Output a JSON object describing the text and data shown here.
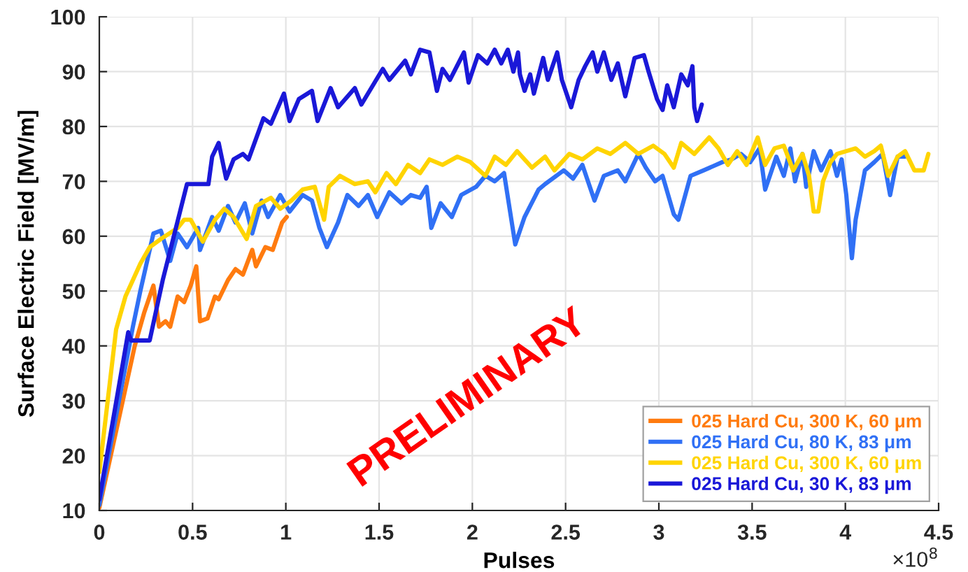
{
  "chart_data": {
    "type": "line",
    "xlabel": "Pulses",
    "ylabel": "Surface Electric Field [MV/m]",
    "xlim": [
      0,
      4.5
    ],
    "xticks": [
      0,
      0.5,
      1,
      1.5,
      2,
      2.5,
      3,
      3.5,
      4,
      4.5
    ],
    "ylim": [
      10,
      100
    ],
    "yticks": [
      10,
      20,
      30,
      40,
      50,
      60,
      70,
      80,
      90,
      100
    ],
    "grid": true,
    "legend": "bottom right",
    "line_style": "solid",
    "marker": "none",
    "annotations": [
      "×10$^{8}$",
      "PRELIMINARY"
    ],
    "series": [
      {
        "name": "025 Hard Cu, 300 K, 60 μm",
        "color": "#ff7b0f",
        "x": [
          0,
          0.1,
          0.19,
          0.24,
          0.27,
          0.29,
          0.32,
          0.355,
          0.38,
          0.42,
          0.455,
          0.49,
          0.52,
          0.54,
          0.58,
          0.62,
          0.64,
          0.69,
          0.73,
          0.77,
          0.82,
          0.84,
          0.89,
          0.93,
          0.98,
          1.005
        ],
        "values": [
          10.5,
          26,
          40,
          46,
          49,
          51,
          43.5,
          44.5,
          43.5,
          49,
          48,
          51,
          54.5,
          44.5,
          45,
          49,
          48.5,
          52,
          54,
          53,
          57.5,
          54.5,
          58,
          57.5,
          62.5,
          63.5
        ]
      },
      {
        "name": "025 Hard Cu, 80 K, 83 μm",
        "color": "#3070f5",
        "x": [
          0,
          0.18,
          0.22,
          0.29,
          0.33,
          0.38,
          0.42,
          0.47,
          0.53,
          0.54,
          0.605,
          0.64,
          0.69,
          0.73,
          0.78,
          0.82,
          0.87,
          0.905,
          0.97,
          1.02,
          1.09,
          1.14,
          1.18,
          1.22,
          1.28,
          1.33,
          1.39,
          1.44,
          1.49,
          1.555,
          1.62,
          1.67,
          1.72,
          1.755,
          1.78,
          1.83,
          1.89,
          1.94,
          2.02,
          2.07,
          2.12,
          2.17,
          2.23,
          2.28,
          2.355,
          2.39,
          2.49,
          2.54,
          2.59,
          2.655,
          2.705,
          2.78,
          2.82,
          2.89,
          2.93,
          2.98,
          3.02,
          3.08,
          3.105,
          3.17,
          3.24,
          3.34,
          3.39,
          3.44,
          3.49,
          3.54,
          3.57,
          3.63,
          3.67,
          3.705,
          3.73,
          3.77,
          3.79,
          3.83,
          3.87,
          3.92,
          3.955,
          3.98,
          4.005,
          4.035,
          4.055,
          4.105,
          4.155,
          4.2,
          4.24,
          4.28,
          4.32
        ],
        "values": [
          11,
          43.5,
          50,
          60.5,
          61,
          55.5,
          60.5,
          58,
          61.5,
          57.5,
          63.5,
          61,
          65.5,
          62.5,
          66,
          60.5,
          66.5,
          63.5,
          67.5,
          64.5,
          67.5,
          66.5,
          61.5,
          58,
          62.5,
          67.5,
          65.5,
          67.5,
          63.5,
          68,
          66,
          67.5,
          67,
          69,
          61.5,
          66,
          63.5,
          67.5,
          69,
          71,
          70,
          71.5,
          58.5,
          63.5,
          68.5,
          69.5,
          72,
          70.5,
          73,
          66.5,
          71,
          72,
          70,
          75,
          72.5,
          70,
          71,
          64,
          63,
          71,
          72,
          73.5,
          74,
          75,
          73.5,
          76,
          68.5,
          74.5,
          71,
          76,
          70,
          75,
          69,
          75.5,
          72,
          75.5,
          71,
          74,
          67.5,
          56,
          63,
          72,
          73.5,
          75,
          67.5,
          74.5,
          74.5
        ]
      },
      {
        "name": "025 Hard Cu, 300 K, 60 μm",
        "color": "#ffd400",
        "x": [
          0,
          0.09,
          0.14,
          0.22,
          0.27,
          0.33,
          0.42,
          0.455,
          0.49,
          0.555,
          0.62,
          0.67,
          0.72,
          0.79,
          0.84,
          0.92,
          0.97,
          1.03,
          1.09,
          1.155,
          1.205,
          1.23,
          1.29,
          1.37,
          1.44,
          1.48,
          1.54,
          1.59,
          1.655,
          1.72,
          1.77,
          1.84,
          1.92,
          1.99,
          2.07,
          2.12,
          2.18,
          2.24,
          2.32,
          2.39,
          2.44,
          2.52,
          2.59,
          2.67,
          2.74,
          2.82,
          2.89,
          2.97,
          3.03,
          3.08,
          3.12,
          3.19,
          3.27,
          3.32,
          3.37,
          3.42,
          3.47,
          3.53,
          3.57,
          3.62,
          3.67,
          3.72,
          3.77,
          3.805,
          3.83,
          3.855,
          3.88,
          3.92,
          3.955,
          4.005,
          4.055,
          4.105,
          4.155,
          4.19,
          4.23,
          4.28,
          4.32,
          4.37,
          4.42,
          4.445
        ],
        "values": [
          17,
          43,
          49,
          55,
          58,
          59.5,
          61.5,
          63,
          63,
          59,
          63,
          65,
          63.5,
          59.5,
          65.5,
          67,
          65,
          66.5,
          68.5,
          69,
          63,
          69,
          71,
          69.5,
          70,
          68,
          71.5,
          69.5,
          73,
          71.5,
          74,
          73,
          74.5,
          73.5,
          71,
          74.5,
          73,
          75.5,
          72.5,
          74.5,
          72,
          75,
          74,
          76,
          75,
          77,
          75,
          76.5,
          75,
          72.5,
          77,
          75,
          78,
          76,
          73,
          75.5,
          73,
          78,
          73,
          76,
          76.5,
          72,
          75,
          71,
          64.5,
          64.5,
          70,
          73.5,
          75,
          75.5,
          76,
          74.5,
          75.5,
          76.5,
          71,
          74.5,
          75.5,
          72,
          72,
          75
        ]
      },
      {
        "name": "025 Hard Cu, 30 K, 83 μm",
        "color": "#1a18d8",
        "x": [
          0,
          0.155,
          0.17,
          0.27,
          0.34,
          0.47,
          0.585,
          0.605,
          0.64,
          0.68,
          0.72,
          0.77,
          0.8,
          0.88,
          0.92,
          0.99,
          1.02,
          1.07,
          1.14,
          1.17,
          1.24,
          1.28,
          1.37,
          1.405,
          1.52,
          1.555,
          1.64,
          1.67,
          1.72,
          1.77,
          1.81,
          1.84,
          1.88,
          1.955,
          1.98,
          2.03,
          2.08,
          2.12,
          2.155,
          2.19,
          2.22,
          2.245,
          2.255,
          2.28,
          2.31,
          2.33,
          2.38,
          2.405,
          2.455,
          2.48,
          2.53,
          2.57,
          2.605,
          2.645,
          2.67,
          2.705,
          2.745,
          2.78,
          2.82,
          2.87,
          2.92,
          2.945,
          2.99,
          3.02,
          3.045,
          3.08,
          3.12,
          3.155,
          3.18,
          3.19,
          3.205,
          3.23
        ],
        "values": [
          12,
          42.5,
          41,
          41,
          52,
          69.5,
          69.5,
          74.5,
          77,
          70.5,
          74,
          75,
          74,
          81.5,
          80.5,
          86,
          81,
          85,
          86.5,
          81,
          87,
          83.5,
          87,
          84,
          90.5,
          88.5,
          92,
          89.5,
          94,
          93.5,
          86.5,
          90.5,
          88.5,
          93.5,
          88,
          93,
          91.5,
          94,
          91.5,
          94,
          90,
          93.5,
          89.5,
          86.5,
          89.5,
          86,
          92.5,
          88.5,
          93.5,
          88.5,
          83.5,
          88.5,
          91,
          93.5,
          90,
          93.5,
          88.5,
          91.5,
          85.5,
          92.5,
          93,
          90,
          85,
          83,
          87.5,
          83.5,
          89.5,
          87.5,
          91,
          83.5,
          81,
          84
        ]
      }
    ]
  }
}
